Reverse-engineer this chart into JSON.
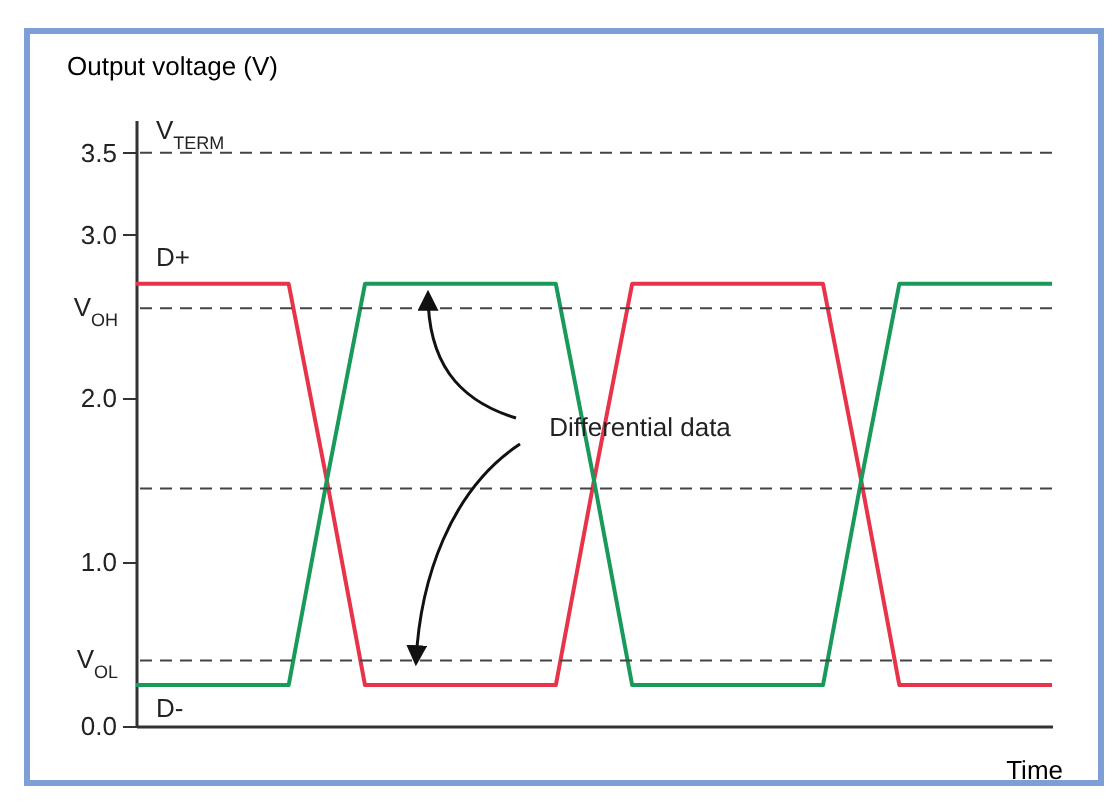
{
  "chart_data": {
    "type": "line",
    "ylabel": "Output voltage (V)",
    "xlabel": "Time",
    "ylim": [
      0,
      3.7
    ],
    "categories": [
      null,
      null,
      null,
      null,
      null,
      null,
      null,
      null,
      null,
      null,
      null,
      null,
      null,
      null,
      null,
      null,
      null,
      null,
      null,
      null,
      null,
      null,
      null,
      null,
      null
    ],
    "yticks": [
      {
        "value": 0,
        "label": "0.0"
      },
      {
        "value": 1,
        "label": "1.0"
      },
      {
        "value": 2,
        "label": "2.0"
      },
      {
        "value": 3,
        "label": "3.0"
      },
      {
        "value": 3.5,
        "label": "3.5"
      }
    ],
    "tick_labels": "y",
    "grid": false,
    "marker": "none",
    "line_style": "solid",
    "series": [
      {
        "name": "D+",
        "color": "#e8344a",
        "values": [
          2.7,
          2.7,
          2.7,
          2.7,
          2.7,
          1.5,
          0.25,
          0.25,
          0.25,
          0.25,
          0.25,
          0.25,
          1.5,
          2.7,
          2.7,
          2.7,
          2.7,
          2.7,
          2.7,
          1.5,
          0.25,
          0.25,
          0.25,
          0.25,
          0.25
        ]
      },
      {
        "name": "D-",
        "color": "#1a9a5a",
        "values": [
          0.25,
          0.25,
          0.25,
          0.25,
          0.25,
          1.5,
          2.7,
          2.7,
          2.7,
          2.7,
          2.7,
          2.7,
          1.5,
          0.25,
          0.25,
          0.25,
          0.25,
          0.25,
          0.25,
          1.5,
          2.7,
          2.7,
          2.7,
          2.7,
          2.7
        ]
      }
    ],
    "ref_lines": [
      {
        "axis": "y",
        "value": 3.5,
        "label": "V$_{TERM}$",
        "color": "#444444",
        "line_style": "dashed"
      },
      {
        "axis": "y",
        "value": 2.55,
        "label": "V$_{OH}$",
        "color": "#444444",
        "line_style": "dashed"
      },
      {
        "axis": "y",
        "value": 1.45,
        "label": null,
        "color": "#444444",
        "line_style": "dashed"
      },
      {
        "axis": "y",
        "value": 0.4,
        "label": "V$_{OL}$",
        "color": "#444444",
        "line_style": "dashed"
      }
    ],
    "annotations": [
      "Differential data"
    ]
  }
}
